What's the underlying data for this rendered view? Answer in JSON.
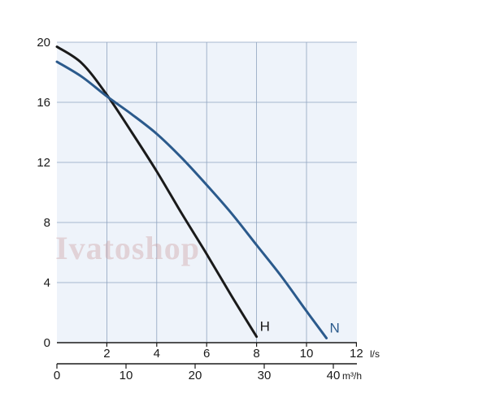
{
  "watermark": "Ivatoshop",
  "colors": {
    "plot_bg": "#eef3fa",
    "grid": "#8fa3bf",
    "axis": "#1a1a1a",
    "series_H": "#1a1a1a",
    "series_N": "#2b5a8c"
  },
  "chart_data": {
    "type": "line",
    "title": "",
    "grid": true,
    "y_axis": {
      "ticks": [
        0,
        4,
        8,
        12,
        16,
        20
      ],
      "ylim": [
        0,
        20
      ]
    },
    "x_axis_ls": {
      "unit": "l/s",
      "ticks": [
        2,
        4,
        6,
        8,
        10,
        12
      ],
      "xlim": [
        0,
        12
      ]
    },
    "x_axis_m3h": {
      "unit": "m³/h",
      "ticks": [
        0,
        10,
        20,
        30,
        40
      ],
      "xlim": [
        0,
        43.2
      ]
    },
    "series": [
      {
        "name": "H",
        "x": [
          0,
          1,
          2,
          3,
          4,
          5,
          6,
          7,
          8
        ],
        "y": [
          19.7,
          18.6,
          16.5,
          14.0,
          11.4,
          8.6,
          5.9,
          3.1,
          0.4
        ]
      },
      {
        "name": "N",
        "x": [
          0,
          1,
          2,
          3,
          4,
          5,
          6,
          7,
          8,
          9,
          10,
          10.8
        ],
        "y": [
          18.7,
          17.7,
          16.4,
          15.2,
          13.9,
          12.3,
          10.5,
          8.6,
          6.5,
          4.4,
          2.1,
          0.3
        ]
      }
    ]
  }
}
